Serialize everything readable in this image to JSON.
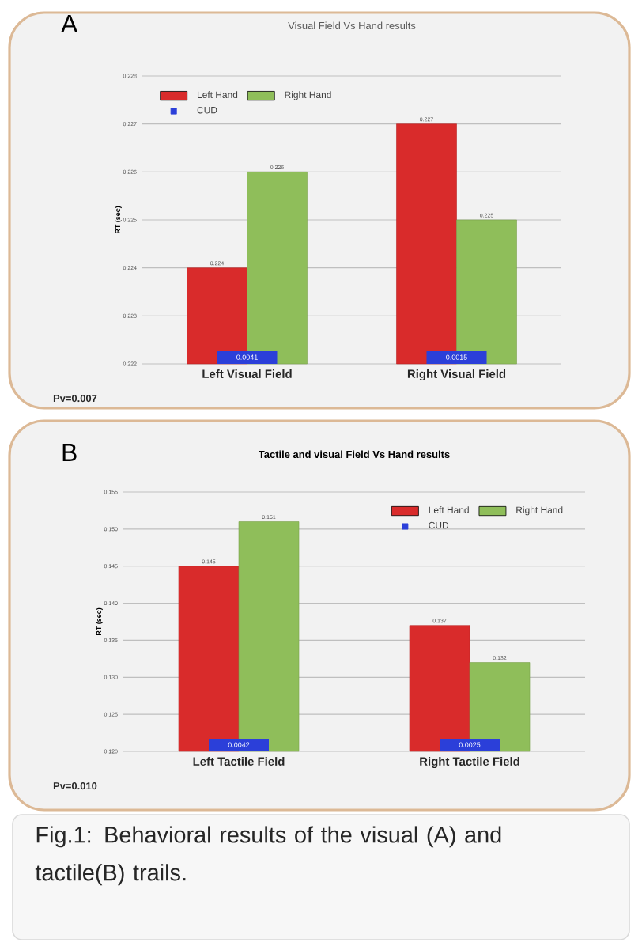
{
  "chart_data": [
    {
      "type": "bar",
      "title": "Visual Field Vs Hand results",
      "ylabel": "RT (sec)",
      "categories": [
        "Left Visual Field",
        "Right Visual Field"
      ],
      "series": [
        {
          "name": "Left Hand",
          "color": "#d92b2b",
          "values": [
            0.224,
            0.227
          ]
        },
        {
          "name": "Right Hand",
          "color": "#8fbe5a",
          "values": [
            0.226,
            0.225
          ]
        },
        {
          "name": "CUD",
          "color": "#2b3fd9",
          "values": [
            null,
            null
          ],
          "value_labels": [
            "0.0041",
            "0.0015"
          ]
        }
      ],
      "ylim": [
        0.222,
        0.228
      ],
      "yticks": [
        0.222,
        0.223,
        0.224,
        0.225,
        0.226,
        0.227,
        0.228
      ],
      "grid": "y",
      "legend": "top left",
      "data_labels": true,
      "annotations": [
        "A",
        "Pv=0.007"
      ]
    },
    {
      "type": "bar",
      "title": "Tactile and visual Field Vs Hand results",
      "ylabel": "RT (sec)",
      "categories": [
        "Left Tactile Field",
        "Right Tactile Field"
      ],
      "series": [
        {
          "name": "Left Hand",
          "color": "#d92b2b",
          "values": [
            0.145,
            0.137
          ]
        },
        {
          "name": "Right Hand",
          "color": "#8fbe5a",
          "values": [
            0.151,
            0.132
          ]
        },
        {
          "name": "CUD",
          "color": "#2b3fd9",
          "values": [
            null,
            null
          ],
          "value_labels": [
            "0.0042",
            "0.0025"
          ]
        }
      ],
      "ylim": [
        0.12,
        0.155
      ],
      "yticks": [
        {
          "value": 0.12,
          "label": "0.120"
        },
        0.125,
        {
          "value": 0.13,
          "label": "0.130"
        },
        0.135,
        {
          "value": 0.14,
          "label": "0.140"
        },
        0.145,
        {
          "value": 0.15,
          "label": "0.150"
        },
        0.155
      ],
      "grid": "y",
      "legend": "top right",
      "data_labels": true,
      "annotations": [
        "B",
        "Pv=0.010"
      ]
    },
    {
      "type": "other",
      "annotations": [
        "Fig.1: Behavioral results of the visual (A) and tactile(B) trails."
      ]
    }
  ]
}
